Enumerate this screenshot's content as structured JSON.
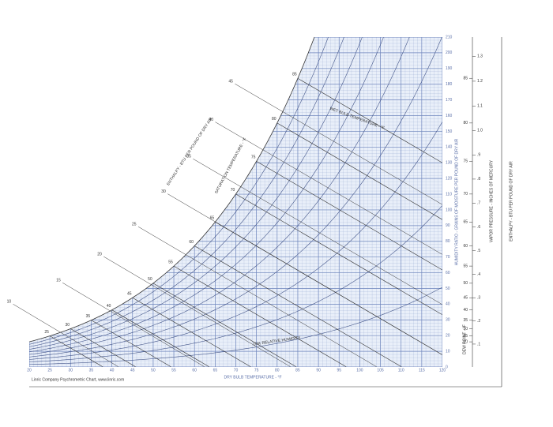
{
  "chart_data": {
    "type": "psychrometric",
    "x_label": "DRY BULB TEMPERATURE - °F",
    "y_label": "HUMIDITY RATIO - GRAINS OF MOISTURE PER POUND OF DRY AIR",
    "enthalpy_label": "ENTHALPY - BTU PER POUND OF DRY AIR",
    "saturation_label": "SATURATION TEMPERATURE - °F",
    "wet_bulb_label": "WET BULB TEMPERATURE - °F",
    "rh_label": "10% RELATIVE HUMIDITY",
    "dew_point_label": "DEW POINT - °F",
    "vapor_pressure_label": "VAPOR PRESSURE - INCHES OF MERCURY",
    "right_enthalpy_label": "ENTHALPY - BTU PER POUND OF DRY AIR",
    "footnote": "Linric Company Psychrometric Chart, www.linric.com",
    "xlim": [
      20,
      120
    ],
    "xticks": [
      20,
      25,
      30,
      35,
      40,
      45,
      50,
      55,
      60,
      65,
      70,
      75,
      80,
      85,
      90,
      95,
      100,
      105,
      110,
      115,
      120
    ],
    "ylim": [
      0,
      210
    ],
    "yticks": [
      0,
      10,
      20,
      30,
      40,
      50,
      60,
      70,
      80,
      90,
      100,
      110,
      120,
      130,
      140,
      150,
      160,
      170,
      180,
      190,
      200,
      210
    ],
    "wet_bulb_labels": [
      25,
      30,
      35,
      40,
      45,
      50,
      55,
      60,
      65,
      70,
      75,
      80,
      85
    ],
    "enthalpy_ticks": [
      10,
      15,
      20,
      25,
      30,
      35,
      40,
      45
    ],
    "rh_lines": [
      10,
      20,
      30,
      40,
      50,
      60,
      70,
      80,
      90
    ],
    "dew_point_ticks": [
      20,
      25,
      30,
      35,
      40,
      45,
      50,
      55,
      60,
      65,
      70,
      75,
      80,
      85
    ],
    "vapor_pressure_ticks": [
      {
        "value": 0.1,
        "label": ".1"
      },
      {
        "value": 0.2,
        "label": ".2"
      },
      {
        "value": 0.3,
        "label": ".3"
      },
      {
        "value": 0.4,
        "label": ".4"
      },
      {
        "value": 0.5,
        "label": ".5"
      },
      {
        "value": 0.6,
        "label": ".6"
      },
      {
        "value": 0.7,
        "label": ".7"
      },
      {
        "value": 0.8,
        "label": ".8"
      },
      {
        "value": 0.9,
        "label": ".9"
      },
      {
        "value": 1.0,
        "label": "1.0"
      },
      {
        "value": 1.1,
        "label": "1.1"
      },
      {
        "value": 1.2,
        "label": "1.2"
      },
      {
        "value": 1.3,
        "label": "1.3"
      }
    ],
    "color": "#6f86bd",
    "fill": "#e9eff9",
    "grid": true
  }
}
